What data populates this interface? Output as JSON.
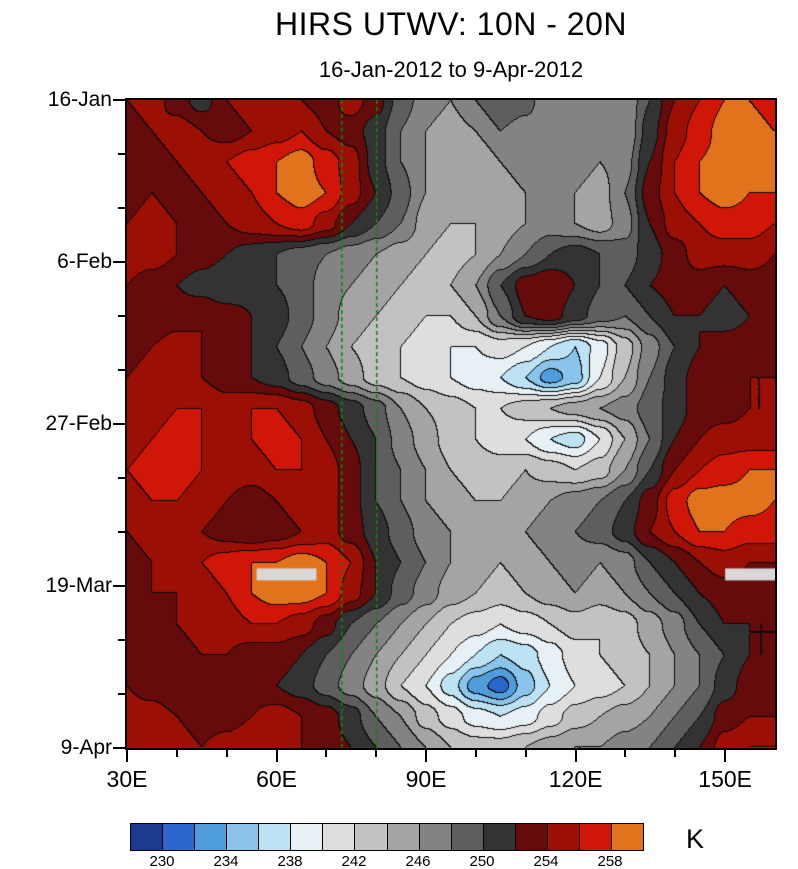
{
  "title": "HIRS UTWV: 10N - 20N",
  "subtitle": "16-Jan-2012 to 9-Apr-2012",
  "colorbar": {
    "unit": "K",
    "tick_labels": [
      "230",
      "234",
      "238",
      "242",
      "246",
      "250",
      "254",
      "258"
    ],
    "level_min": 228,
    "level_step": 2,
    "colors": [
      "#1c3a8e",
      "#2a66cc",
      "#4f9ddb",
      "#8ac4ea",
      "#bce2f4",
      "#e6f0f5",
      "#dedede",
      "#c2c2c2",
      "#a4a4a4",
      "#838383",
      "#5e5e5e",
      "#333333",
      "#650b0b",
      "#9c0f05",
      "#cf1607",
      "#e2731d"
    ]
  },
  "chart_data": {
    "type": "heatmap",
    "title": "HIRS UTWV: 10N - 20N",
    "subtitle": "16-Jan-2012 to 9-Apr-2012",
    "x_axis": "longitude",
    "y_axis": "time",
    "unit": "K",
    "x_range": [
      30,
      160
    ],
    "y_range": [
      0,
      84
    ],
    "x_ticks": [
      {
        "lon": 30,
        "label": "30E"
      },
      {
        "lon": 60,
        "label": "60E"
      },
      {
        "lon": 90,
        "label": "90E"
      },
      {
        "lon": 120,
        "label": "120E"
      },
      {
        "lon": 150,
        "label": "150E"
      }
    ],
    "x_minor_ticks": [
      40,
      50,
      70,
      80,
      100,
      110,
      130,
      140
    ],
    "y_ticks": [
      {
        "day": 0,
        "label": "16-Jan"
      },
      {
        "day": 21,
        "label": "6-Feb"
      },
      {
        "day": 42,
        "label": "27-Feb"
      },
      {
        "day": 63,
        "label": "19-Mar"
      },
      {
        "day": 84,
        "label": "9-Apr"
      }
    ],
    "y_minor_ticks": [
      7,
      14,
      28,
      35,
      49,
      56,
      70,
      77
    ],
    "dashed_lines_lon": [
      73,
      80
    ],
    "dashed_line_color": "#0c8a0c",
    "missing_bars": [
      {
        "lon0": 56,
        "lon1": 68,
        "day": 61.5
      },
      {
        "lon0": 150,
        "lon1": 160,
        "day": 61.5
      }
    ],
    "missing_bar_color": "#d8d8d8",
    "contour_line_color": "#0a0a0a",
    "grid": {
      "lon_start": 30,
      "lon_step": 5,
      "day_start": 0,
      "day_step": 4,
      "values": [
        [
          254,
          255,
          253,
          251,
          254,
          255,
          256,
          254,
          253,
          255,
          253,
          249,
          247,
          246,
          248,
          250,
          249,
          246,
          247,
          248,
          246,
          250,
          254,
          256,
          258,
          258,
          257
        ],
        [
          253,
          254,
          255,
          254,
          253,
          254,
          255,
          256,
          254,
          253,
          251,
          248,
          246,
          245,
          246,
          248,
          247,
          246,
          248,
          247,
          246,
          251,
          255,
          257,
          259,
          259,
          258
        ],
        [
          252,
          253,
          254,
          255,
          256,
          257,
          258,
          259,
          257,
          255,
          251,
          248,
          246,
          245,
          244,
          246,
          247,
          246,
          247,
          246,
          247,
          252,
          256,
          258,
          259,
          259,
          259
        ],
        [
          253,
          254,
          253,
          254,
          255,
          256,
          258,
          259,
          258,
          255,
          252,
          249,
          246,
          244,
          245,
          245,
          246,
          247,
          246,
          245,
          248,
          253,
          256,
          258,
          259,
          258,
          258
        ],
        [
          254,
          255,
          254,
          253,
          254,
          255,
          256,
          257,
          255,
          252,
          250,
          248,
          245,
          244,
          244,
          245,
          246,
          247,
          246,
          245,
          247,
          252,
          255,
          256,
          257,
          257,
          256
        ],
        [
          255,
          255,
          254,
          253,
          252,
          251,
          250,
          249,
          248,
          247,
          246,
          245,
          244,
          243,
          244,
          246,
          248,
          250,
          251,
          250,
          249,
          251,
          253,
          255,
          255,
          255,
          254
        ],
        [
          254,
          253,
          252,
          251,
          250,
          251,
          250,
          249,
          247,
          246,
          245,
          244,
          243,
          244,
          246,
          250,
          253,
          254,
          252,
          250,
          250,
          252,
          253,
          253,
          252,
          253,
          253
        ],
        [
          253,
          252,
          253,
          254,
          253,
          252,
          251,
          249,
          247,
          245,
          244,
          243,
          242,
          242,
          244,
          248,
          252,
          253,
          251,
          249,
          248,
          250,
          252,
          252,
          251,
          252,
          252
        ],
        [
          253,
          254,
          255,
          254,
          253,
          252,
          250,
          248,
          246,
          244,
          243,
          242,
          241,
          240,
          240,
          241,
          240,
          238,
          236,
          239,
          243,
          247,
          250,
          252,
          253,
          253,
          253
        ],
        [
          254,
          255,
          255,
          254,
          253,
          252,
          251,
          249,
          247,
          245,
          243,
          242,
          241,
          240,
          239,
          238,
          236,
          233,
          235,
          240,
          244,
          248,
          251,
          253,
          254,
          254,
          254
        ],
        [
          254,
          255,
          256,
          256,
          255,
          256,
          256,
          255,
          253,
          251,
          249,
          246,
          244,
          243,
          242,
          242,
          243,
          244,
          245,
          246,
          247,
          249,
          251,
          253,
          253,
          254,
          254
        ],
        [
          255,
          256,
          257,
          256,
          255,
          256,
          257,
          256,
          254,
          252,
          250,
          247,
          245,
          243,
          242,
          241,
          240,
          238,
          237,
          240,
          244,
          248,
          252,
          254,
          255,
          255,
          255
        ],
        [
          256,
          257,
          257,
          256,
          255,
          255,
          256,
          256,
          255,
          253,
          250,
          248,
          246,
          244,
          243,
          243,
          244,
          243,
          242,
          243,
          246,
          250,
          254,
          256,
          257,
          258,
          258
        ],
        [
          255,
          256,
          256,
          255,
          254,
          253,
          254,
          255,
          255,
          253,
          250,
          248,
          246,
          245,
          244,
          244,
          245,
          246,
          247,
          248,
          250,
          253,
          257,
          259,
          259,
          259,
          258
        ],
        [
          254,
          255,
          255,
          254,
          253,
          252,
          253,
          254,
          255,
          253,
          251,
          249,
          247,
          246,
          245,
          245,
          246,
          247,
          248,
          249,
          251,
          254,
          256,
          258,
          258,
          257,
          257
        ],
        [
          253,
          254,
          255,
          256,
          257,
          258,
          258,
          259,
          258,
          256,
          252,
          250,
          248,
          246,
          245,
          244,
          245,
          246,
          247,
          246,
          247,
          250,
          252,
          254,
          255,
          254,
          254
        ],
        [
          253,
          254,
          254,
          255,
          256,
          258,
          259,
          259,
          258,
          255,
          252,
          249,
          247,
          245,
          244,
          243,
          244,
          245,
          246,
          245,
          246,
          248,
          250,
          252,
          253,
          253,
          253
        ],
        [
          252,
          253,
          254,
          255,
          255,
          256,
          256,
          255,
          253,
          250,
          248,
          246,
          244,
          242,
          241,
          240,
          241,
          242,
          243,
          242,
          243,
          245,
          247,
          250,
          252,
          252,
          252
        ],
        [
          253,
          252,
          253,
          254,
          254,
          253,
          253,
          252,
          250,
          248,
          246,
          244,
          242,
          240,
          238,
          236,
          237,
          239,
          241,
          242,
          243,
          244,
          246,
          248,
          250,
          252,
          252
        ],
        [
          254,
          253,
          252,
          253,
          254,
          253,
          252,
          251,
          249,
          247,
          245,
          242,
          240,
          237,
          233,
          231,
          235,
          238,
          240,
          241,
          242,
          244,
          246,
          248,
          251,
          253,
          253
        ],
        [
          255,
          255,
          254,
          253,
          253,
          254,
          255,
          254,
          253,
          251,
          248,
          246,
          243,
          241,
          239,
          238,
          239,
          241,
          243,
          244,
          245,
          246,
          248,
          250,
          253,
          254,
          254
        ],
        [
          255,
          256,
          255,
          254,
          255,
          256,
          255,
          254,
          253,
          252,
          250,
          248,
          246,
          244,
          243,
          243,
          244,
          245,
          246,
          246,
          247,
          248,
          250,
          252,
          255,
          256,
          256
        ]
      ]
    }
  }
}
